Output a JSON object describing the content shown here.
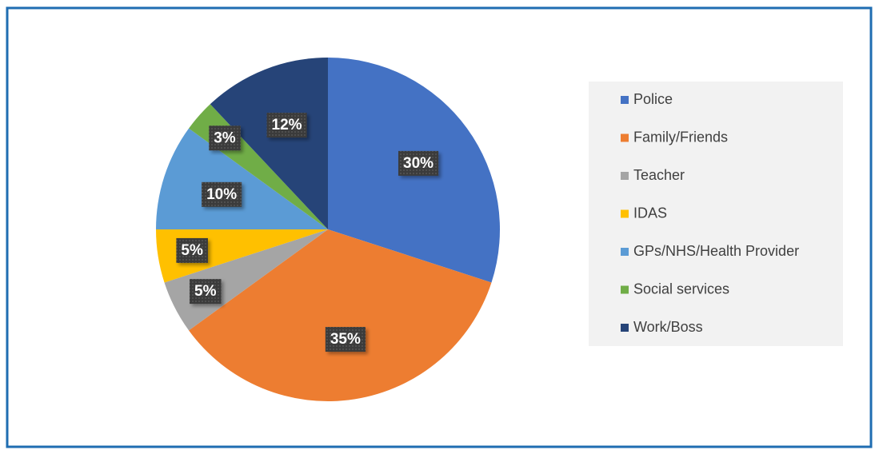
{
  "chart_data": {
    "type": "pie",
    "categories": [
      "Police",
      "Family/Friends",
      "Teacher",
      "IDAS",
      "GPs/NHS/Health Provider",
      "Social services",
      "Work/Boss"
    ],
    "values": [
      30,
      35,
      5,
      5,
      10,
      3,
      12
    ],
    "value_labels": [
      "30%",
      "35%",
      "5%",
      "5%",
      "10%",
      "3%",
      "12%"
    ],
    "colors": [
      "#4472c4",
      "#ed7d31",
      "#a5a5a5",
      "#ffc000",
      "#5b9bd5",
      "#70ad47",
      "#264478"
    ],
    "legend": "right"
  }
}
